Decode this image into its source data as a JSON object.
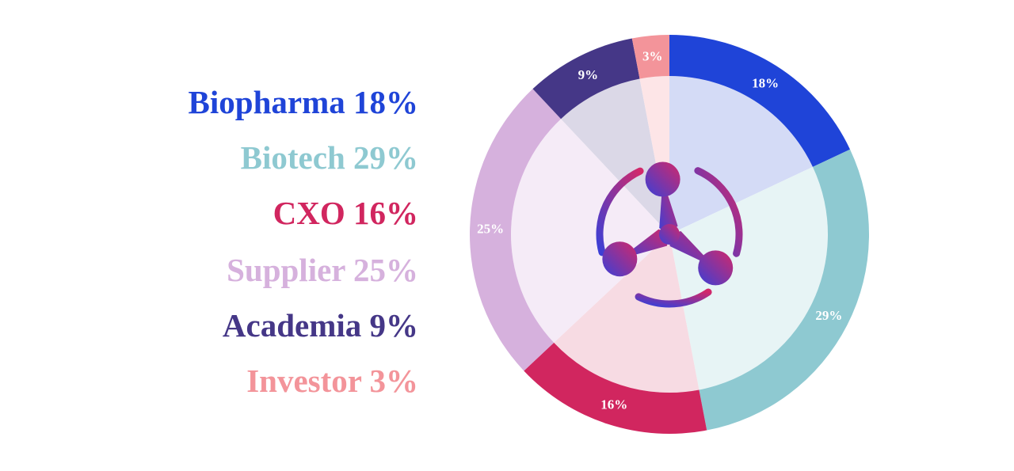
{
  "chart_data": {
    "type": "pie",
    "title": "",
    "legend_position": "left",
    "slices": [
      {
        "label": "Biopharma",
        "value": 18,
        "value_label": "18%",
        "color": "#1f44d8",
        "inner_color": "#d4dbf6"
      },
      {
        "label": "Biotech",
        "value": 29,
        "value_label": "29%",
        "color": "#8ec9d1",
        "inner_color": "#e7f4f5"
      },
      {
        "label": "CXO",
        "value": 16,
        "value_label": "16%",
        "color": "#d1265f",
        "inner_color": "#f7dbe3"
      },
      {
        "label": "Supplier",
        "value": 25,
        "value_label": "25%",
        "color": "#d6b1dd",
        "inner_color": "#f5ebf7"
      },
      {
        "label": "Academia",
        "value": 9,
        "value_label": "9%",
        "color": "#453787",
        "inner_color": "#dbd8e7"
      },
      {
        "label": "Investor",
        "value": 3,
        "value_label": "3%",
        "color": "#f3949a",
        "inner_color": "#fde5e7"
      }
    ]
  },
  "logo": {
    "name": "tri-lobe-logo-icon",
    "gradient_start": "#3b3fd6",
    "gradient_end": "#d2286a"
  }
}
